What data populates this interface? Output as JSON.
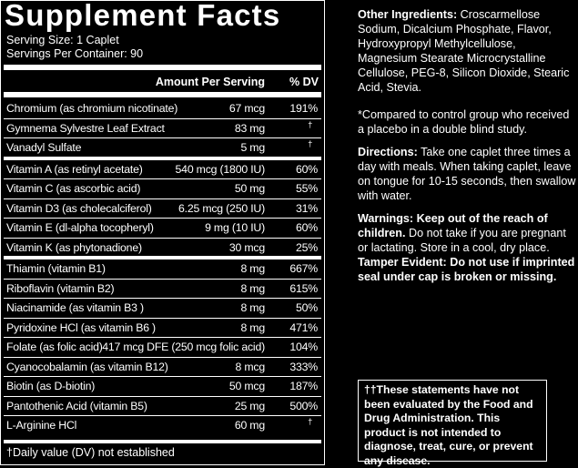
{
  "label": {
    "title": "Supplement Facts",
    "serving_size": "Serving Size: 1 Caplet",
    "servings_per_container": "Servings Per Container: 90",
    "columns": [
      "Amount Per Serving",
      "% DV"
    ],
    "groups": [
      [
        [
          "Chromium (as chromium nicotinate)",
          "67 mcg",
          "191%"
        ],
        [
          "Gymnema Sylvestre Leaf Extract",
          "83 mg",
          "†"
        ],
        [
          "Vanadyl Sulfate",
          "5 mg",
          "†"
        ]
      ],
      [
        [
          "Vitamin A (as retinyl acetate)",
          "540 mcg  (1800 IU)",
          "60%"
        ],
        [
          "Vitamin C (as ascorbic acid)",
          "50 mg",
          "55%"
        ],
        [
          "Vitamin D3 (as cholecalciferol)",
          "6.25 mcg (250 IU)",
          "31%"
        ],
        [
          "Vitamin E (dl-alpha tocopheryl)",
          "9 mg (10 IU)",
          "60%"
        ],
        [
          "Vitamin K (as phytonadione)",
          "30 mcg",
          "25%"
        ]
      ],
      [
        [
          "Thiamin (vitamin B1)",
          "8 mg",
          "667%"
        ],
        [
          "Riboflavin (vitamin B2)",
          "8 mg",
          "615%"
        ],
        [
          "Niacinamide (as vitamin B3 )",
          "8 mg",
          "50%"
        ],
        [
          "Pyridoxine HCl (as vitamin B6 )",
          "8 mg",
          "471%"
        ],
        [
          "Folate (as folic acid)",
          "417 mcg DFE (250 mcg folic acid)",
          "104%"
        ],
        [
          "Cyanocobalamin (as vitamin B12)",
          "8 mcg",
          "333%"
        ],
        [
          "Biotin (as D-biotin)",
          "50 mcg",
          "187%"
        ],
        [
          "Pantothenic Acid (vitamin B5)",
          "25 mg",
          "500%"
        ],
        [
          "L-Arginine HCl",
          "60 mg",
          "†"
        ]
      ]
    ],
    "footnote": "†Daily value (DV) not established"
  },
  "info": {
    "other_ingredients_label": "Other Ingredients:",
    "other_ingredients": "Croscarmellose Sodium, Dicalcium Phosphate, Flavor, Hydroxypropyl Methylcellulose, Magnesium Stearate  Microcrystalline Cellulose, PEG-8, Silicon Dioxide, Stearic Acid, Stevia.",
    "compared_note": "*Compared to control group who received a placebo in a double blind study.",
    "directions_label": "Directions:",
    "directions": "Take one caplet three times a day with meals. When taking caplet, leave on tongue for 10-15 seconds, then swallow with water.",
    "warnings_bold": "Warnings: Keep out of the reach of children.",
    "warnings": "Do not take if you are pregnant or lactating. Store in a cool, dry place.",
    "tamper": "Tamper Evident: Do not use if imprinted seal under cap is broken or missing.",
    "disclaimer": "††These statements have not been evaluated by the Food and Drug Administration. This product is not intended to diagnose, treat, cure, or prevent any disease."
  }
}
